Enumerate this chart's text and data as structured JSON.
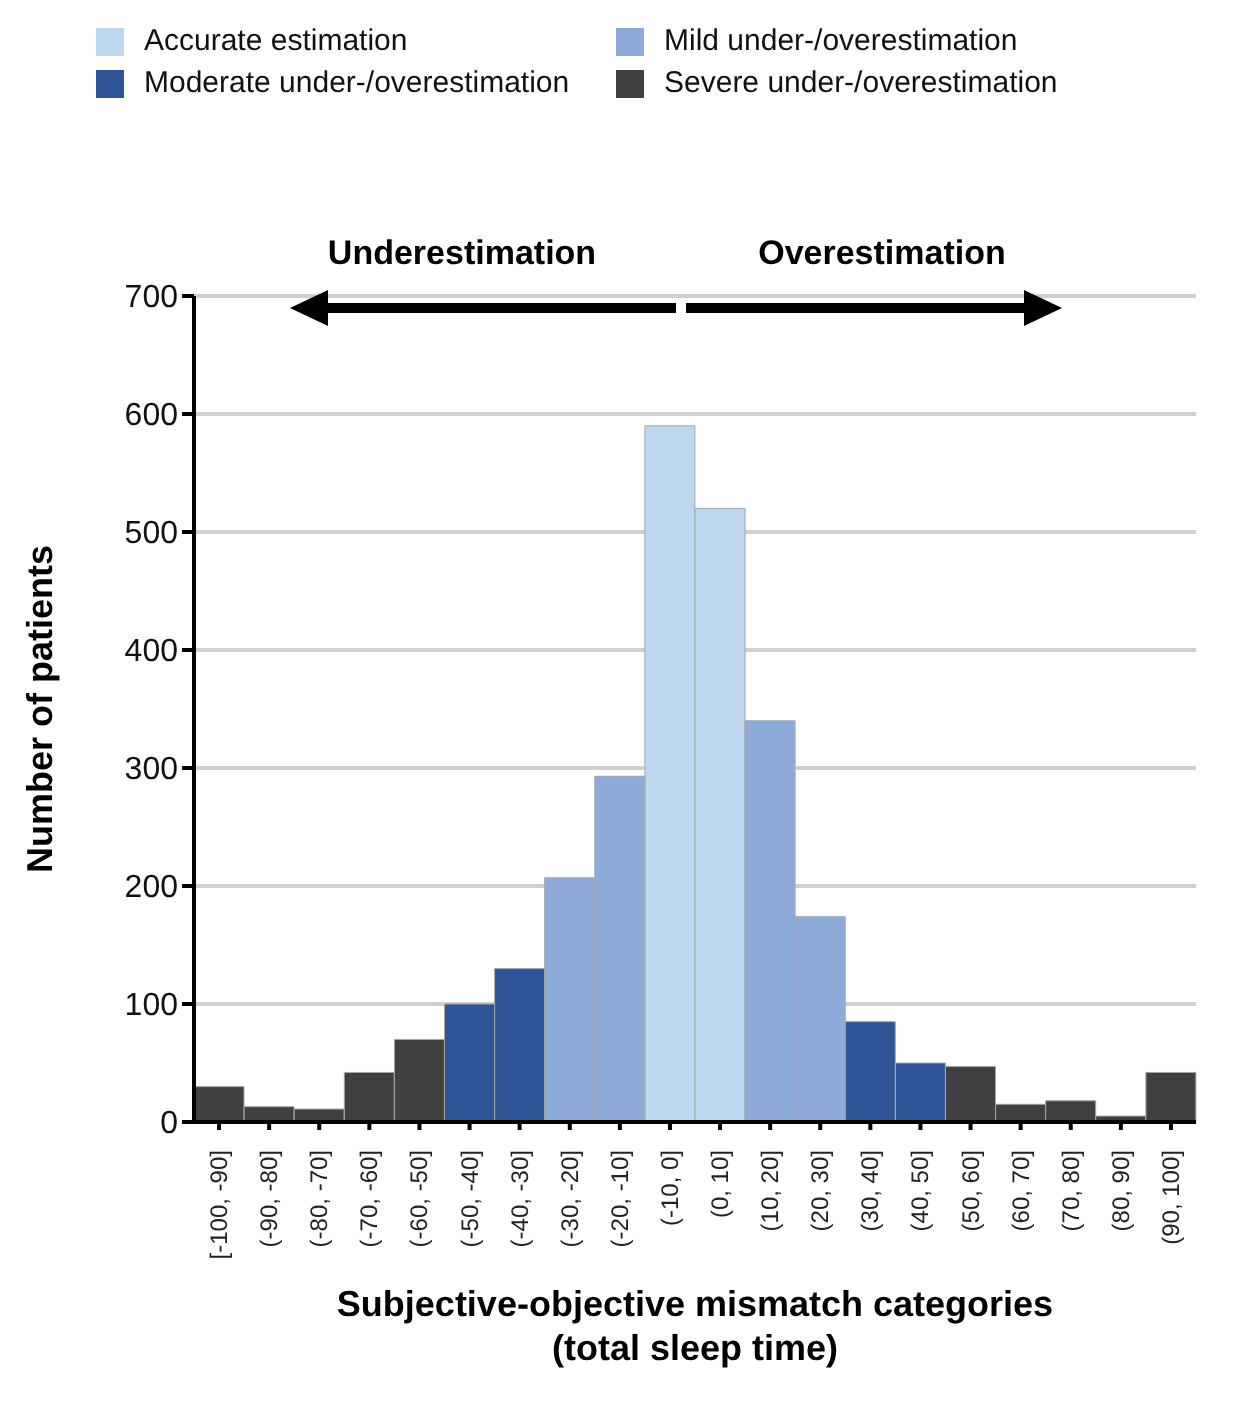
{
  "chart_data": {
    "type": "bar",
    "stacked": true,
    "categories": [
      "[-100, -90]",
      "(-90, -80]",
      "(-80, -70]",
      "(-70, -60]",
      "(-60, -50]",
      "(-50, -40]",
      "(-40, -30]",
      "(-30, -20]",
      "(-20, -10]",
      "(-10, 0]",
      "(0, 10]",
      "(10, 20]",
      "(20, 30]",
      "(30, 40]",
      "(40, 50]",
      "(50, 60]",
      "(60, 70]",
      "(70, 80]",
      "(80, 90]",
      "(90, 100]"
    ],
    "series": [
      {
        "name": "Accurate estimation",
        "color": "#bdd7ee",
        "values": [
          null,
          null,
          null,
          null,
          null,
          null,
          null,
          null,
          null,
          590,
          520,
          null,
          null,
          null,
          null,
          null,
          null,
          null,
          null,
          null
        ]
      },
      {
        "name": "Mild under-/overestimation",
        "color": "#8eaadb",
        "values": [
          null,
          null,
          null,
          null,
          null,
          null,
          null,
          207,
          293,
          null,
          null,
          340,
          174,
          null,
          null,
          null,
          null,
          null,
          null,
          null
        ]
      },
      {
        "name": "Moderate under-/overestimation",
        "color": "#2f5597",
        "values": [
          null,
          null,
          null,
          null,
          null,
          100,
          130,
          null,
          null,
          null,
          null,
          null,
          null,
          85,
          50,
          null,
          null,
          null,
          null,
          null
        ]
      },
      {
        "name": "Severe under-/overestimation",
        "color": "#404040",
        "values": [
          30,
          13,
          11,
          42,
          70,
          null,
          null,
          null,
          null,
          null,
          null,
          null,
          null,
          null,
          null,
          47,
          15,
          18,
          5,
          42
        ]
      }
    ],
    "xlabel": "Subjective-objective mismatch categories\n(total sleep time)",
    "ylabel": "Number of patients",
    "ylim": [
      0,
      700
    ],
    "yticks": [
      0,
      100,
      200,
      300,
      400,
      500,
      600,
      700
    ],
    "grid": "y",
    "legend": "top",
    "annotations": [
      "Underestimation",
      "Overestimation"
    ]
  }
}
